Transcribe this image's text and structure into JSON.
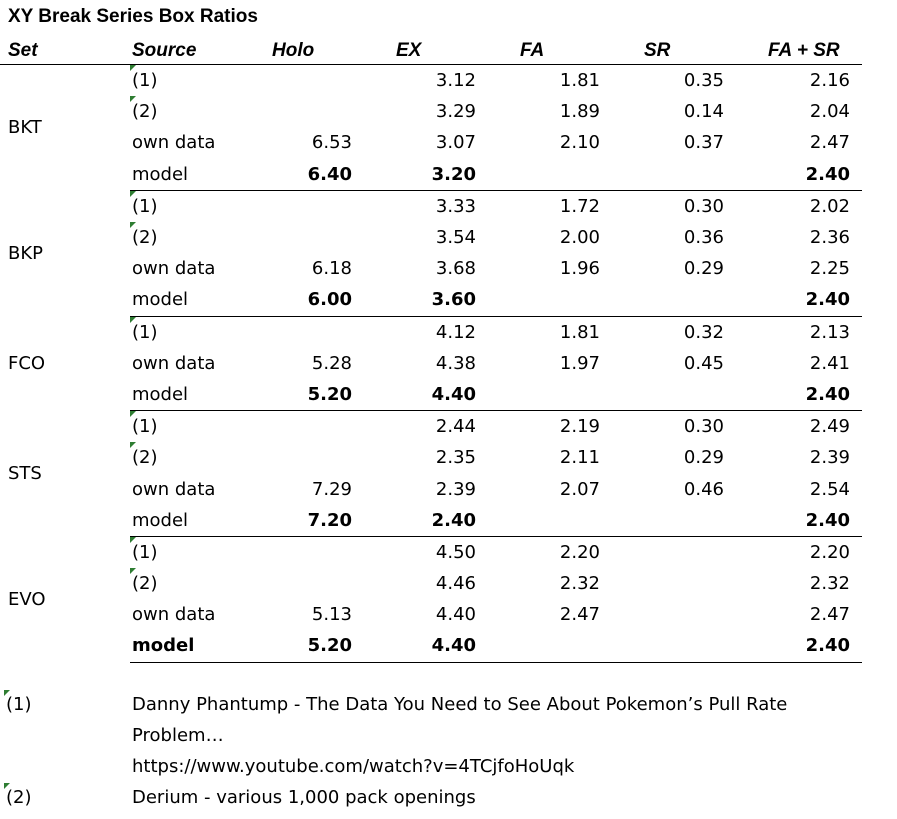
{
  "title": "XY Break Series Box Ratios",
  "headers": {
    "set": "Set",
    "source": "Source",
    "holo": "Holo",
    "ex": "EX",
    "fa": "FA",
    "sr": "SR",
    "fasr": "FA + SR"
  },
  "groups": [
    {
      "set": "BKT",
      "rows": [
        {
          "source": "(1)",
          "holo": "",
          "ex": "3.12",
          "fa": "1.81",
          "sr": "0.35",
          "fasr": "2.16",
          "note": true,
          "bold": false
        },
        {
          "source": "(2)",
          "holo": "",
          "ex": "3.29",
          "fa": "1.89",
          "sr": "0.14",
          "fasr": "2.04",
          "note": true,
          "bold": false
        },
        {
          "source": "own data",
          "holo": "6.53",
          "ex": "3.07",
          "fa": "2.10",
          "sr": "0.37",
          "fasr": "2.47",
          "note": false,
          "bold": false
        },
        {
          "source": "model",
          "holo": "6.40",
          "ex": "3.20",
          "fa": "",
          "sr": "",
          "fasr": "2.40",
          "note": false,
          "bold": true,
          "bold_label": false
        }
      ]
    },
    {
      "set": "BKP",
      "rows": [
        {
          "source": "(1)",
          "holo": "",
          "ex": "3.33",
          "fa": "1.72",
          "sr": "0.30",
          "fasr": "2.02",
          "note": true,
          "bold": false
        },
        {
          "source": "(2)",
          "holo": "",
          "ex": "3.54",
          "fa": "2.00",
          "sr": "0.36",
          "fasr": "2.36",
          "note": true,
          "bold": false
        },
        {
          "source": "own data",
          "holo": "6.18",
          "ex": "3.68",
          "fa": "1.96",
          "sr": "0.29",
          "fasr": "2.25",
          "note": false,
          "bold": false
        },
        {
          "source": "model",
          "holo": "6.00",
          "ex": "3.60",
          "fa": "",
          "sr": "",
          "fasr": "2.40",
          "note": false,
          "bold": true,
          "bold_label": false
        }
      ]
    },
    {
      "set": "FCO",
      "rows": [
        {
          "source": "(1)",
          "holo": "",
          "ex": "4.12",
          "fa": "1.81",
          "sr": "0.32",
          "fasr": "2.13",
          "note": true,
          "bold": false
        },
        {
          "source": "own data",
          "holo": "5.28",
          "ex": "4.38",
          "fa": "1.97",
          "sr": "0.45",
          "fasr": "2.41",
          "note": false,
          "bold": false
        },
        {
          "source": "model",
          "holo": "5.20",
          "ex": "4.40",
          "fa": "",
          "sr": "",
          "fasr": "2.40",
          "note": false,
          "bold": true,
          "bold_label": false
        }
      ]
    },
    {
      "set": "STS",
      "rows": [
        {
          "source": "(1)",
          "holo": "",
          "ex": "2.44",
          "fa": "2.19",
          "sr": "0.30",
          "fasr": "2.49",
          "note": true,
          "bold": false
        },
        {
          "source": "(2)",
          "holo": "",
          "ex": "2.35",
          "fa": "2.11",
          "sr": "0.29",
          "fasr": "2.39",
          "note": true,
          "bold": false
        },
        {
          "source": "own data",
          "holo": "7.29",
          "ex": "2.39",
          "fa": "2.07",
          "sr": "0.46",
          "fasr": "2.54",
          "note": false,
          "bold": false
        },
        {
          "source": "model",
          "holo": "7.20",
          "ex": "2.40",
          "fa": "",
          "sr": "",
          "fasr": "2.40",
          "note": false,
          "bold": true,
          "bold_label": false
        }
      ]
    },
    {
      "set": "EVO",
      "rows": [
        {
          "source": "(1)",
          "holo": "",
          "ex": "4.50",
          "fa": "2.20",
          "sr": "",
          "fasr": "2.20",
          "note": true,
          "bold": false
        },
        {
          "source": "(2)",
          "holo": "",
          "ex": "4.46",
          "fa": "2.32",
          "sr": "",
          "fasr": "2.32",
          "note": true,
          "bold": false
        },
        {
          "source": "own data",
          "holo": "5.13",
          "ex": "4.40",
          "fa": "2.47",
          "sr": "",
          "fasr": "2.47",
          "note": false,
          "bold": false
        },
        {
          "source": "model",
          "holo": "5.20",
          "ex": "4.40",
          "fa": "",
          "sr": "",
          "fasr": "2.40",
          "note": false,
          "bold": true,
          "bold_label": true
        }
      ]
    }
  ],
  "footnotes": [
    {
      "key": "(1)",
      "lines": [
        "Danny Phantump - The Data You Need to See About Pokemon’s Pull Rate",
        "Problem…",
        "https://www.youtube.com/watch?v=4TCjfoHoUqk"
      ]
    },
    {
      "key": "(2)",
      "lines": [
        "Derium - various 1,000 pack openings"
      ]
    }
  ],
  "colors": {
    "comment_marker": "#2e7d32",
    "text": "#000000",
    "rule": "#000000"
  }
}
